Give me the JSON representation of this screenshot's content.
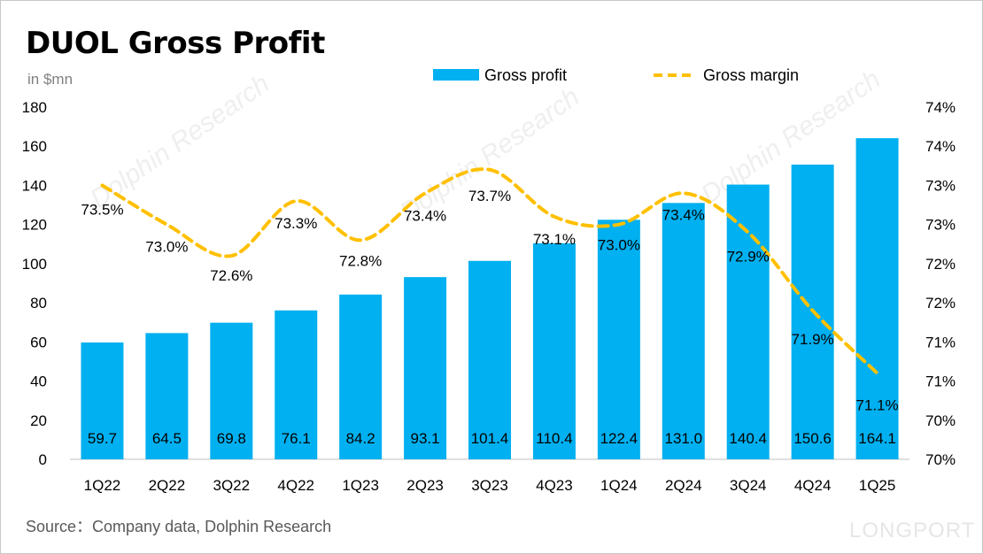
{
  "title": "DUOL Gross Profit",
  "unit_label": "in $mn",
  "source": "Source：Company data, Dolphin Research",
  "brand": "LONGPORT",
  "watermark": "Dolphin Research",
  "colors": {
    "bar": "#00b0f0",
    "line": "#ffc000"
  },
  "chart_data": {
    "type": "bar",
    "categories": [
      "1Q22",
      "2Q22",
      "3Q22",
      "4Q22",
      "1Q23",
      "2Q23",
      "3Q23",
      "4Q23",
      "1Q24",
      "2Q24",
      "3Q24",
      "4Q24",
      "1Q25"
    ],
    "series": [
      {
        "name": "Gross profit",
        "type": "bar",
        "axis": "left",
        "values": [
          59.7,
          64.5,
          69.8,
          76.1,
          84.2,
          93.1,
          101.4,
          110.4,
          122.4,
          131.0,
          140.4,
          150.6,
          164.1
        ],
        "labels": [
          "59.7",
          "64.5",
          "69.8",
          "76.1",
          "84.2",
          "93.1",
          "101.4",
          "110.4",
          "122.4",
          "131.0",
          "140.4",
          "150.6",
          "164.1"
        ]
      },
      {
        "name": "Gross margin",
        "type": "line",
        "axis": "right",
        "style": "dashed-smooth",
        "values": [
          73.5,
          73.0,
          72.6,
          73.3,
          72.8,
          73.4,
          73.7,
          73.1,
          73.0,
          73.4,
          72.9,
          71.9,
          71.1
        ],
        "labels": [
          "73.5%",
          "73.0%",
          "72.6%",
          "73.3%",
          "72.8%",
          "73.4%",
          "73.7%",
          "73.1%",
          "73.0%",
          "73.4%",
          "72.9%",
          "71.9%",
          "71.1%"
        ]
      }
    ],
    "y_left": {
      "min": 0,
      "max": 180,
      "ticks": [
        "0",
        "20",
        "40",
        "60",
        "80",
        "100",
        "120",
        "140",
        "160",
        "180"
      ]
    },
    "y_right": {
      "min": 70.0,
      "max": 74.5,
      "ticks": [
        "70%",
        "70%",
        "71%",
        "71%",
        "72%",
        "72%",
        "73%",
        "73%",
        "74%",
        "74%"
      ]
    },
    "legend": {
      "position": "top-center",
      "entries": [
        "Gross profit",
        "Gross margin"
      ]
    },
    "grid": false
  }
}
